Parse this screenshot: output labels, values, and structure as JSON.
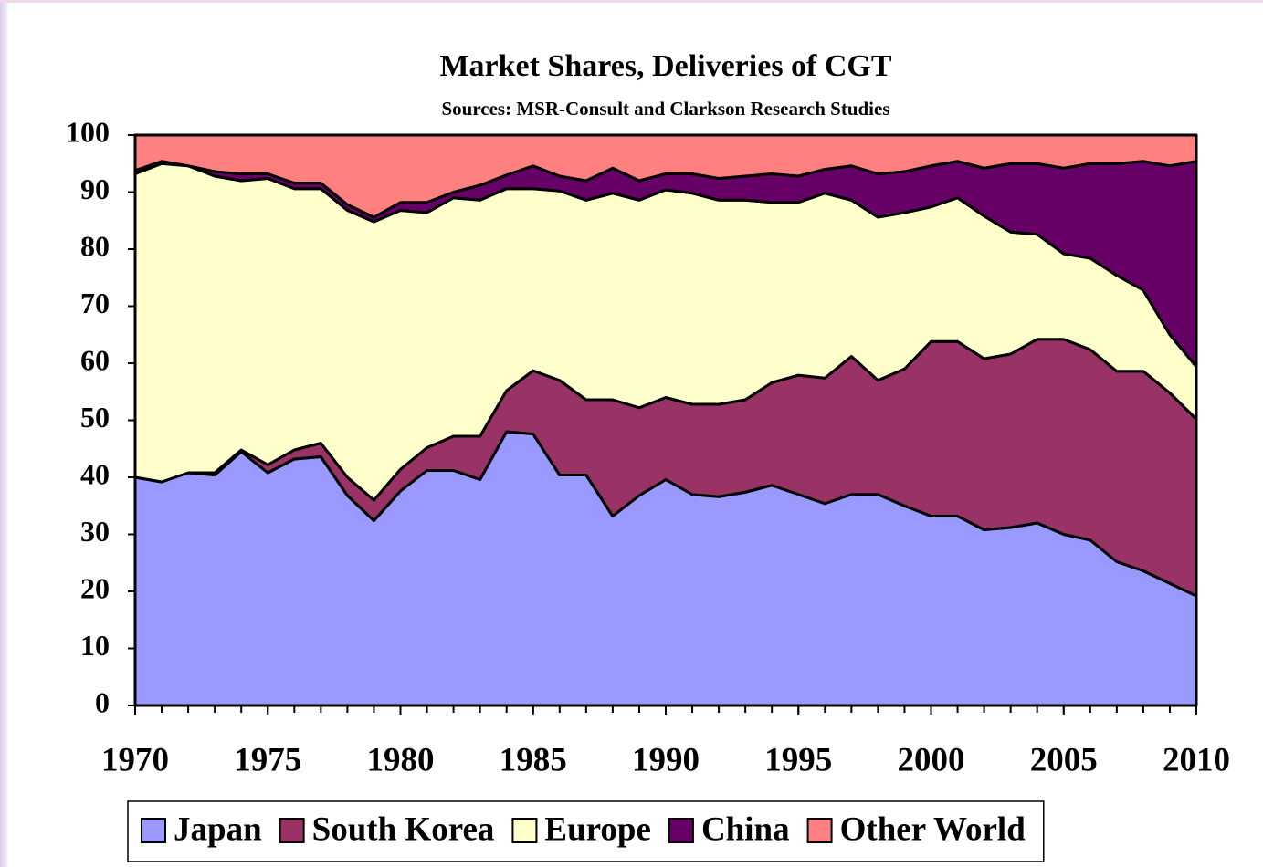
{
  "chart_data": {
    "type": "stacked_area",
    "title": "Market Shares, Deliveries of CGT",
    "subtitle": "Sources: MSR-Consult and Clarkson Research Studies",
    "x": [
      1970,
      1971,
      1972,
      1973,
      1974,
      1975,
      1976,
      1977,
      1978,
      1979,
      1980,
      1981,
      1982,
      1983,
      1984,
      1985,
      1986,
      1987,
      1988,
      1989,
      1990,
      1991,
      1992,
      1993,
      1994,
      1995,
      1996,
      1997,
      1998,
      1999,
      2000,
      2001,
      2002,
      2003,
      2004,
      2005,
      2006,
      2007,
      2008,
      2009,
      2010
    ],
    "series": [
      {
        "name": "Japan",
        "color": "#9999ff",
        "values": [
          40,
          39.2,
          40.8,
          40.4,
          44.5,
          40.8,
          43.2,
          43.6,
          36.8,
          32.4,
          37.6,
          41.2,
          41.2,
          39.6,
          48,
          47.6,
          40.4,
          40.4,
          33.2,
          36.8,
          39.6,
          37,
          36.6,
          37.4,
          38.6,
          37,
          35.4,
          37,
          37,
          35,
          33.2,
          33.2,
          30.8,
          31.2,
          32,
          30,
          29,
          25.2,
          23.6,
          21.4,
          19.2
        ]
      },
      {
        "name": "South Korea",
        "color": "#993366",
        "values": [
          0,
          0,
          0,
          0.4,
          0.3,
          1.4,
          1.6,
          2.4,
          3.2,
          3.6,
          3.8,
          4,
          6,
          7.6,
          7.2,
          11.1,
          16.6,
          13.2,
          20.4,
          15.4,
          14.4,
          15.8,
          16.2,
          16.2,
          18,
          20.9,
          22,
          24.2,
          20,
          24,
          30.6,
          30.6,
          30,
          30.4,
          32.2,
          34.2,
          33.4,
          33.4,
          35,
          33.4,
          31
        ]
      },
      {
        "name": "Europe",
        "color": "#ffffcc",
        "values": [
          53.2,
          55.8,
          53.8,
          52,
          47.2,
          50.2,
          45.8,
          44.6,
          46.8,
          48.8,
          45.4,
          41.2,
          41.8,
          41.4,
          35.4,
          31.9,
          33.2,
          35,
          36.2,
          36.4,
          36.4,
          37,
          35.8,
          35,
          31.6,
          30.3,
          32.4,
          27.4,
          28.6,
          27.4,
          23.6,
          25.2,
          25,
          21.4,
          18.4,
          15,
          16,
          16.8,
          14.2,
          10.2,
          9.2
        ]
      },
      {
        "name": "China",
        "color": "#660066",
        "values": [
          0.6,
          0.4,
          0,
          0.8,
          1.2,
          0.8,
          1,
          1,
          1,
          0.8,
          1.4,
          1.8,
          1,
          2.6,
          2.4,
          4,
          2.6,
          3.4,
          4.4,
          3.4,
          2.8,
          3.4,
          3.8,
          4.2,
          5,
          4.6,
          4.2,
          6,
          7.6,
          7.2,
          7.2,
          6.4,
          8.4,
          12,
          12.4,
          15,
          16.6,
          19.6,
          22.6,
          29.6,
          36
        ]
      },
      {
        "name": "Other World",
        "color": "#ff8080",
        "values": [
          6.2,
          4.6,
          5.4,
          6.4,
          6.8,
          6.8,
          8.4,
          8.4,
          12.2,
          14.4,
          11.8,
          11.8,
          10,
          8.8,
          7,
          5.4,
          7.2,
          8,
          5.8,
          8,
          6.8,
          6.8,
          7.6,
          7.2,
          6.8,
          7.2,
          6,
          5.4,
          6.8,
          6.4,
          5.4,
          4.6,
          5.8,
          5,
          5,
          5.8,
          5,
          5,
          4.6,
          5.4,
          4.6
        ]
      }
    ],
    "xlim": [
      1970,
      2010
    ],
    "xticks": [
      1970,
      1975,
      1980,
      1985,
      1990,
      1995,
      2000,
      2005,
      2010
    ],
    "ylim": [
      0,
      100
    ],
    "yticks": [
      0,
      10,
      20,
      30,
      40,
      50,
      60,
      70,
      80,
      90,
      100
    ],
    "grid": false,
    "legend": "bottom"
  }
}
